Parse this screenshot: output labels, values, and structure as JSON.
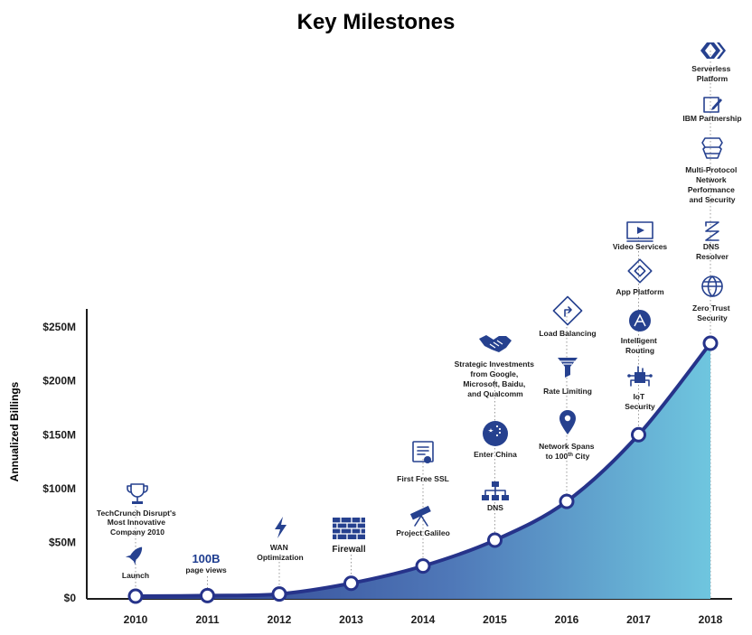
{
  "chart_data": {
    "type": "area",
    "title": "Key Milestones",
    "ylabel": "Annualized Billings",
    "xlabel": "",
    "x": [
      "2010",
      "2011",
      "2012",
      "2013",
      "2014",
      "2015",
      "2016",
      "2017",
      "2018"
    ],
    "y_ticks": [
      "$0",
      "$50M",
      "$100M",
      "$150M",
      "$200M",
      "$250M"
    ],
    "ylim": [
      0,
      250
    ],
    "grid": false,
    "series": [
      {
        "values": [
          0,
          0.5,
          2,
          12,
          28,
          52,
          88,
          150,
          235
        ]
      }
    ],
    "colors": {
      "line": "#26338a",
      "fill_start": "#2c3b8c",
      "fill_end": "#6fc6df",
      "icon": "#26418f",
      "accent": "#1d3c8f"
    }
  },
  "milestones": {
    "y2010": {
      "award": "TechCrunch Disrupt's Most Innovative Company 2010",
      "launch": "Launch",
      "icons": [
        "trophy-icon",
        "rocket-icon"
      ]
    },
    "y2011": {
      "big": "100B",
      "sub": "page views"
    },
    "y2012": {
      "wan": "WAN Optimization",
      "icons": [
        "lightning-bolt-icon"
      ]
    },
    "y2013": {
      "firewall": "Firewall",
      "icons": [
        "brick-wall-icon"
      ]
    },
    "y2014": {
      "ssl": "First Free SSL",
      "galileo": "Project Galileo",
      "icons": [
        "certificate-icon",
        "telescope-icon"
      ]
    },
    "y2015": {
      "investments": "Strategic Investments from Google, Microsoft, Baidu, and Qualcomm",
      "china": "Enter China",
      "dns": "DNS",
      "icons": [
        "handshake-icon",
        "china-flag-icon",
        "network-tree-icon"
      ]
    },
    "y2016": {
      "lb": "Load Balancing",
      "rate": "Rate Limiting",
      "network": "Network Spans to 100",
      "network_sup": "th",
      "network_end": " City",
      "icons": [
        "route-arrow-icon",
        "funnel-icon",
        "map-pin-icon"
      ]
    },
    "y2017": {
      "video": "Video Services",
      "app": "App Platform",
      "routing": "Intelligent Routing",
      "iot": "IoT Security",
      "icons": [
        "video-player-icon",
        "diamond-icon",
        "routing-icon",
        "iot-chip-icon"
      ]
    },
    "y2018": {
      "serverless": "Serverless Platform",
      "ibm": "IBM Partnership",
      "multi": "Multi-Protocol Network Performance and Security",
      "resolver": "DNS Resolver",
      "zero": "Zero Trust Security",
      "icons": [
        "chevrons-icon",
        "edit-icon",
        "layers-icon",
        "zigzag-icon",
        "globe-icon"
      ]
    }
  }
}
